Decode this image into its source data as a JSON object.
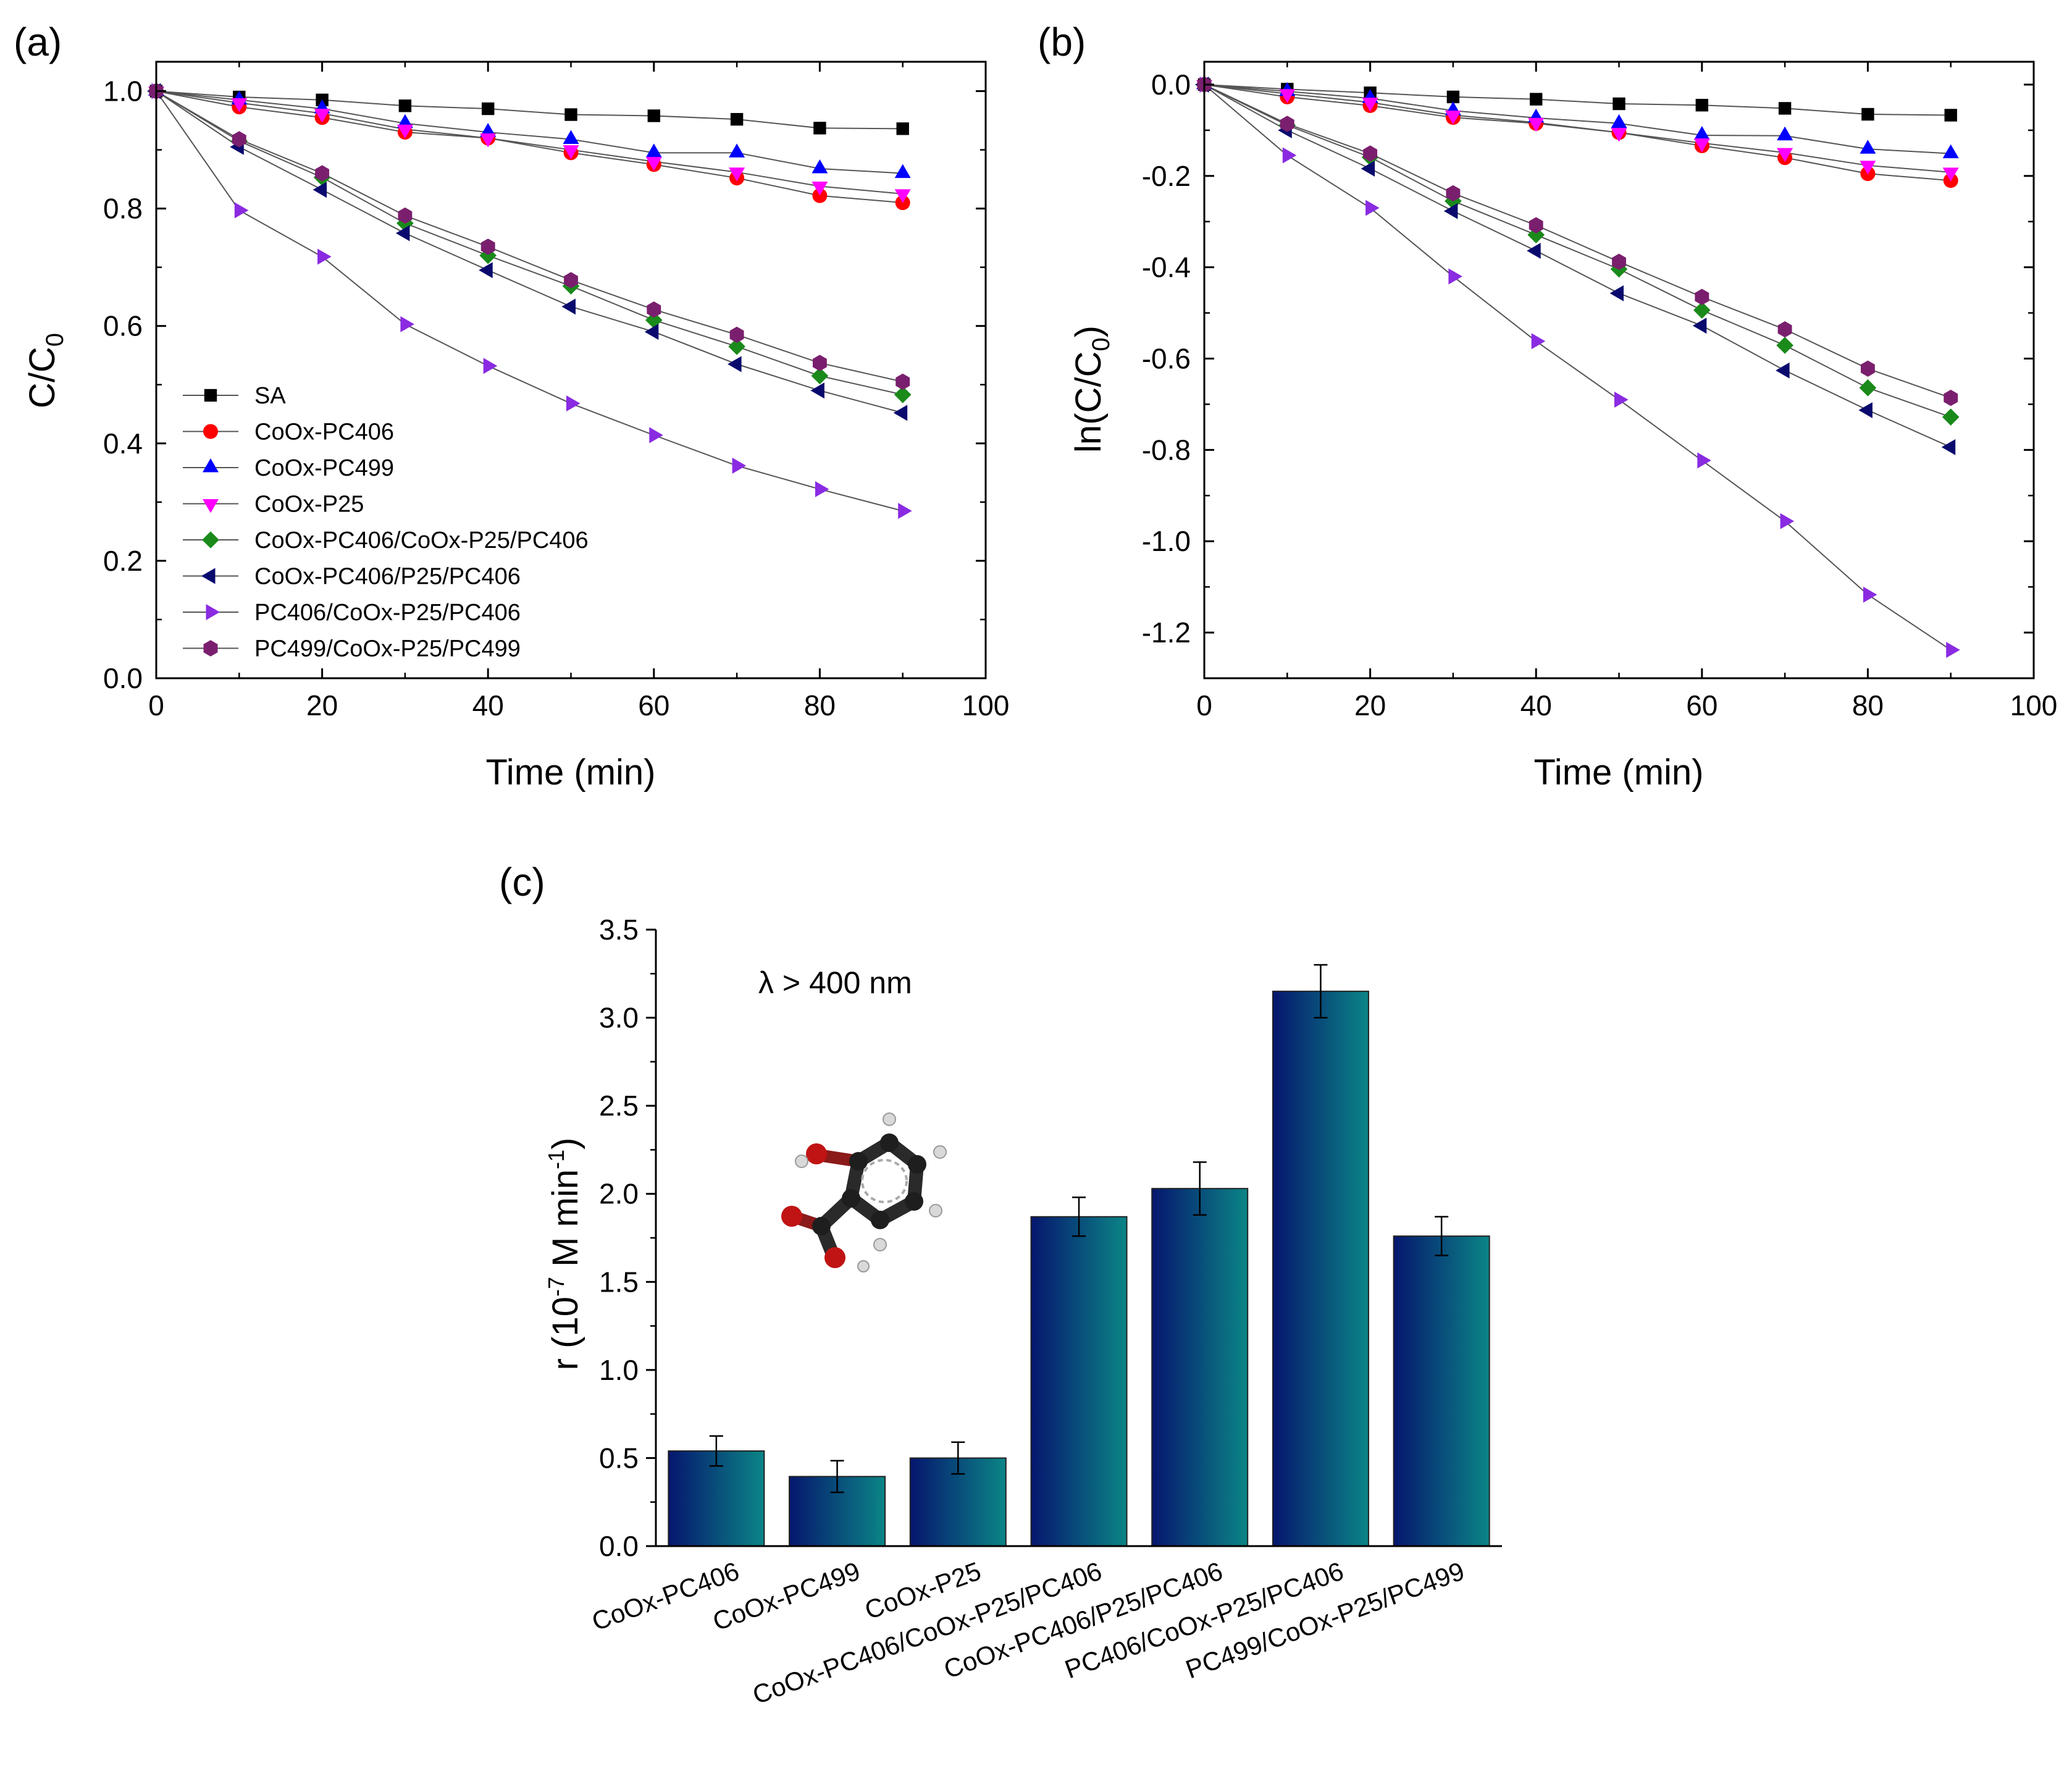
{
  "chart_data": [
    {
      "panel": "(a)",
      "type": "line",
      "xlabel": "Time (min)",
      "ylabel": "C/C0",
      "xlim": [
        0,
        100
      ],
      "ylim": [
        0,
        1.05
      ],
      "xticks": [
        0,
        20,
        40,
        60,
        80,
        100
      ],
      "yticks": [
        0.0,
        0.2,
        0.4,
        0.6,
        0.8,
        1.0
      ],
      "legend_position": "bottom-left",
      "grid": false,
      "x": [
        0,
        10,
        20,
        30,
        40,
        50,
        60,
        70,
        80,
        90
      ],
      "series": [
        {
          "name": "SA",
          "marker": "square",
          "color": "#000000",
          "values": [
            1.0,
            0.99,
            0.985,
            0.975,
            0.97,
            0.96,
            0.958,
            0.952,
            0.937,
            0.936
          ]
        },
        {
          "name": "CoOx-PC406",
          "marker": "circle",
          "color": "#ff0000",
          "values": [
            1.0,
            0.973,
            0.955,
            0.93,
            0.92,
            0.895,
            0.875,
            0.852,
            0.822,
            0.81
          ]
        },
        {
          "name": "CoOx-PC499",
          "marker": "triangle-up",
          "color": "#0000ff",
          "values": [
            1.0,
            0.985,
            0.97,
            0.945,
            0.93,
            0.918,
            0.895,
            0.895,
            0.868,
            0.86
          ]
        },
        {
          "name": "CoOx-P25",
          "marker": "triangle-down",
          "color": "#ff00ff",
          "values": [
            1.0,
            0.98,
            0.962,
            0.935,
            0.92,
            0.9,
            0.88,
            0.862,
            0.838,
            0.825
          ]
        },
        {
          "name": "CoOx-PC406/CoOx-P25/PC406",
          "marker": "diamond",
          "color": "#1a8a1a",
          "values": [
            1.0,
            0.915,
            0.853,
            0.775,
            0.72,
            0.668,
            0.61,
            0.565,
            0.515,
            0.483
          ]
        },
        {
          "name": "CoOx-PC406/P25/PC406",
          "marker": "triangle-left",
          "color": "#0a0a6e",
          "values": [
            1.0,
            0.905,
            0.832,
            0.758,
            0.695,
            0.633,
            0.59,
            0.535,
            0.49,
            0.452
          ]
        },
        {
          "name": "PC406/CoOx-P25/PC406",
          "marker": "triangle-right",
          "color": "#8a2be2",
          "values": [
            1.0,
            0.797,
            0.718,
            0.603,
            0.532,
            0.468,
            0.414,
            0.362,
            0.322,
            0.285
          ]
        },
        {
          "name": "PC499/CoOx-P25/PC499",
          "marker": "hexagon",
          "color": "#7a1f6e",
          "values": [
            1.0,
            0.918,
            0.86,
            0.788,
            0.735,
            0.678,
            0.628,
            0.585,
            0.537,
            0.505
          ]
        }
      ]
    },
    {
      "panel": "(b)",
      "type": "line",
      "xlabel": "Time (min)",
      "ylabel": "ln(C/C0)",
      "xlim": [
        0,
        100
      ],
      "ylim": [
        -1.3,
        0.05
      ],
      "xticks": [
        0,
        20,
        40,
        60,
        80,
        100
      ],
      "yticks": [
        0.0,
        -0.2,
        -0.4,
        -0.6,
        -0.8,
        -1.0,
        -1.2
      ],
      "grid": false,
      "x": [
        0,
        10,
        20,
        30,
        40,
        50,
        60,
        70,
        80,
        90
      ],
      "series": [
        {
          "name": "SA",
          "marker": "square",
          "color": "#000000",
          "values": [
            0,
            -0.01,
            -0.018,
            -0.027,
            -0.032,
            -0.042,
            -0.045,
            -0.052,
            -0.065,
            -0.067
          ]
        },
        {
          "name": "CoOx-PC406",
          "marker": "circle",
          "color": "#ff0000",
          "values": [
            0,
            -0.027,
            -0.046,
            -0.072,
            -0.085,
            -0.105,
            -0.134,
            -0.16,
            -0.195,
            -0.21
          ]
        },
        {
          "name": "CoOx-PC499",
          "marker": "triangle-up",
          "color": "#0000ff",
          "values": [
            0,
            -0.015,
            -0.03,
            -0.057,
            -0.073,
            -0.085,
            -0.111,
            -0.112,
            -0.141,
            -0.151
          ]
        },
        {
          "name": "CoOx-P25",
          "marker": "triangle-down",
          "color": "#ff00ff",
          "values": [
            0,
            -0.02,
            -0.039,
            -0.067,
            -0.083,
            -0.105,
            -0.128,
            -0.149,
            -0.177,
            -0.192
          ]
        },
        {
          "name": "CoOx-PC406/CoOx-P25/PC406",
          "marker": "diamond",
          "color": "#1a8a1a",
          "values": [
            0,
            -0.089,
            -0.159,
            -0.255,
            -0.329,
            -0.404,
            -0.494,
            -0.571,
            -0.664,
            -0.728
          ]
        },
        {
          "name": "CoOx-PC406/P25/PC406",
          "marker": "triangle-left",
          "color": "#0a0a6e",
          "values": [
            0,
            -0.1,
            -0.184,
            -0.277,
            -0.364,
            -0.457,
            -0.528,
            -0.626,
            -0.713,
            -0.794
          ]
        },
        {
          "name": "PC406/CoOx-P25/PC406",
          "marker": "triangle-right",
          "color": "#8a2be2",
          "values": [
            0,
            -0.155,
            -0.27,
            -0.42,
            -0.562,
            -0.69,
            -0.823,
            -0.956,
            -1.117,
            -1.238
          ]
        },
        {
          "name": "PC499/CoOx-P25/PC499",
          "marker": "hexagon",
          "color": "#7a1f6e",
          "values": [
            0,
            -0.086,
            -0.151,
            -0.238,
            -0.308,
            -0.388,
            -0.465,
            -0.536,
            -0.622,
            -0.686
          ]
        }
      ]
    },
    {
      "panel": "(c)",
      "type": "bar",
      "ylabel_parts": [
        "r (10",
        "-7",
        " M min",
        "-1",
        ")"
      ],
      "ylim": [
        0,
        3.5
      ],
      "yticks": [
        0.0,
        0.5,
        1.0,
        1.5,
        2.0,
        2.5,
        3.0,
        3.5
      ],
      "annotation": "λ > 400 nm",
      "categories": [
        "CoOx-PC406",
        "CoOx-PC499",
        "CoOx-P25",
        "CoOx-PC406/CoOx-P25/PC406",
        "CoOx-PC406/P25/PC406",
        "PC406/CoOx-P25/PC406",
        "PC499/CoOx-P25/PC499"
      ],
      "values": [
        0.54,
        0.395,
        0.5,
        1.87,
        2.03,
        3.15,
        1.76
      ],
      "errors": [
        0.085,
        0.09,
        0.09,
        0.11,
        0.15,
        0.15,
        0.11
      ],
      "bar_gradient": [
        "#06166e",
        "#0b8586"
      ]
    }
  ]
}
